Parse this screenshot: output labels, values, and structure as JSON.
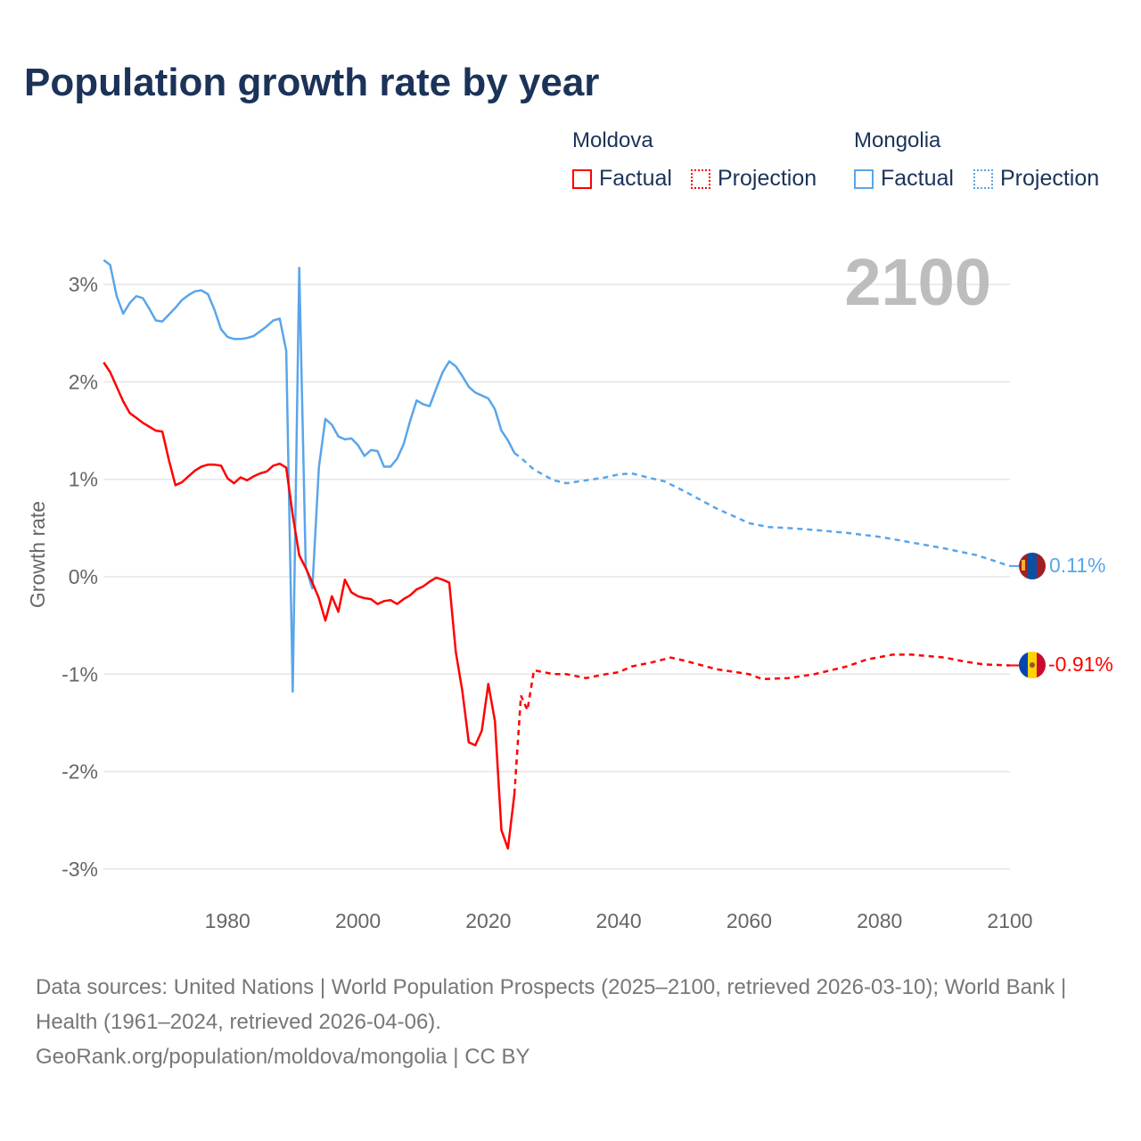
{
  "title": "Population growth rate by year",
  "legend": {
    "groups": [
      {
        "name": "Moldova",
        "color": "#ff0000",
        "factual": "Factual",
        "projection": "Projection"
      },
      {
        "name": "Mongolia",
        "color": "#5aa5ea",
        "factual": "Factual",
        "projection": "Projection"
      }
    ]
  },
  "year_label": "2100",
  "footer": {
    "sources": "Data sources: United Nations | World Population Prospects (2025–2100, retrieved 2026-03-10); World Bank | Health (1961–2024, retrieved 2026-04-06).",
    "link": "GeoRank.org/population/moldova/mongolia | CC BY"
  },
  "chart_data": {
    "type": "line",
    "title": "Population growth rate by year",
    "xlabel": "",
    "ylabel": "Growth rate",
    "xlim": [
      1961,
      2100
    ],
    "ylim": [
      -3.3,
      3.3
    ],
    "xticks": [
      1980,
      2000,
      2020,
      2040,
      2060,
      2080,
      2100
    ],
    "yticks": [
      {
        "v": 3,
        "label": "3%"
      },
      {
        "v": 2,
        "label": "2%"
      },
      {
        "v": 1,
        "label": "1%"
      },
      {
        "v": 0,
        "label": "0%"
      },
      {
        "v": -1,
        "label": "-1%"
      },
      {
        "v": -2,
        "label": "-2%"
      },
      {
        "v": -3,
        "label": "-3%"
      }
    ],
    "grid": true,
    "series": [
      {
        "name": "Mongolia",
        "color": "#5aa5ea",
        "end_label": "0.11%",
        "factual": {
          "x": [
            1961,
            1962,
            1963,
            1964,
            1965,
            1966,
            1967,
            1968,
            1969,
            1970,
            1971,
            1972,
            1973,
            1974,
            1975,
            1976,
            1977,
            1978,
            1979,
            1980,
            1981,
            1982,
            1983,
            1984,
            1985,
            1986,
            1987,
            1988,
            1989,
            1990,
            1991,
            1992,
            1993,
            1994,
            1995,
            1996,
            1997,
            1998,
            1999,
            2000,
            2001,
            2002,
            2003,
            2004,
            2005,
            2006,
            2007,
            2008,
            2009,
            2010,
            2011,
            2012,
            2013,
            2014,
            2015,
            2016,
            2017,
            2018,
            2019,
            2020,
            2021,
            2022,
            2023,
            2024
          ],
          "y": [
            3.25,
            3.2,
            2.88,
            2.7,
            2.81,
            2.88,
            2.86,
            2.75,
            2.63,
            2.62,
            2.69,
            2.76,
            2.84,
            2.89,
            2.93,
            2.94,
            2.9,
            2.74,
            2.54,
            2.46,
            2.44,
            2.44,
            2.45,
            2.47,
            2.52,
            2.57,
            2.63,
            2.65,
            2.32,
            -1.18,
            3.17,
            0.1,
            -0.12,
            1.12,
            1.62,
            1.56,
            1.44,
            1.41,
            1.42,
            1.35,
            1.24,
            1.3,
            1.29,
            1.13,
            1.13,
            1.21,
            1.36,
            1.6,
            1.81,
            1.77,
            1.75,
            1.93,
            2.1,
            2.21,
            2.16,
            2.06,
            1.95,
            1.89,
            1.86,
            1.83,
            1.72,
            1.5,
            1.4,
            1.27
          ]
        },
        "projection": {
          "x": [
            2024,
            2025,
            2027,
            2030,
            2032,
            2035,
            2038,
            2040,
            2042,
            2045,
            2047,
            2050,
            2055,
            2058,
            2060,
            2063,
            2066,
            2070,
            2075,
            2080,
            2085,
            2090,
            2095,
            2100
          ],
          "y": [
            1.27,
            1.22,
            1.1,
            0.99,
            0.96,
            0.99,
            1.02,
            1.05,
            1.06,
            1.01,
            0.98,
            0.88,
            0.7,
            0.61,
            0.55,
            0.51,
            0.5,
            0.48,
            0.45,
            0.41,
            0.35,
            0.29,
            0.22,
            0.11
          ]
        }
      },
      {
        "name": "Moldova",
        "color": "#ff0000",
        "end_label": "-0.91%",
        "factual": {
          "x": [
            1961,
            1962,
            1963,
            1964,
            1965,
            1966,
            1967,
            1968,
            1969,
            1970,
            1971,
            1972,
            1973,
            1974,
            1975,
            1976,
            1977,
            1978,
            1979,
            1980,
            1981,
            1982,
            1983,
            1984,
            1985,
            1986,
            1987,
            1988,
            1989,
            1990,
            1991,
            1992,
            1993,
            1994,
            1995,
            1996,
            1997,
            1998,
            1999,
            2000,
            2001,
            2002,
            2003,
            2004,
            2005,
            2006,
            2007,
            2008,
            2009,
            2010,
            2011,
            2012,
            2013,
            2014,
            2015,
            2016,
            2017,
            2018,
            2019,
            2020,
            2021,
            2022,
            2023,
            2024
          ],
          "y": [
            2.2,
            2.1,
            1.95,
            1.8,
            1.68,
            1.63,
            1.58,
            1.54,
            1.5,
            1.49,
            1.2,
            0.94,
            0.97,
            1.03,
            1.09,
            1.13,
            1.15,
            1.15,
            1.14,
            1.01,
            0.96,
            1.02,
            0.99,
            1.03,
            1.06,
            1.08,
            1.14,
            1.16,
            1.12,
            0.63,
            0.22,
            0.09,
            -0.06,
            -0.22,
            -0.45,
            -0.2,
            -0.36,
            -0.03,
            -0.16,
            -0.2,
            -0.22,
            -0.23,
            -0.28,
            -0.25,
            -0.24,
            -0.28,
            -0.23,
            -0.19,
            -0.13,
            -0.1,
            -0.05,
            -0.01,
            -0.03,
            -0.06,
            -0.77,
            -1.17,
            -1.7,
            -1.73,
            -1.58,
            -1.1,
            -1.48,
            -2.6,
            -2.79,
            -2.23
          ]
        },
        "projection": {
          "x": [
            2024,
            2025,
            2026,
            2027,
            2030,
            2032,
            2035,
            2038,
            2040,
            2042,
            2045,
            2048,
            2050,
            2055,
            2060,
            2062,
            2066,
            2070,
            2075,
            2078,
            2082,
            2085,
            2090,
            2093,
            2096,
            2100
          ],
          "y": [
            -2.23,
            -1.22,
            -1.37,
            -0.96,
            -1.0,
            -1.0,
            -1.04,
            -1.0,
            -0.98,
            -0.92,
            -0.88,
            -0.83,
            -0.86,
            -0.95,
            -1.0,
            -1.05,
            -1.04,
            -1.0,
            -0.92,
            -0.85,
            -0.8,
            -0.8,
            -0.83,
            -0.87,
            -0.9,
            -0.91
          ]
        }
      }
    ]
  }
}
